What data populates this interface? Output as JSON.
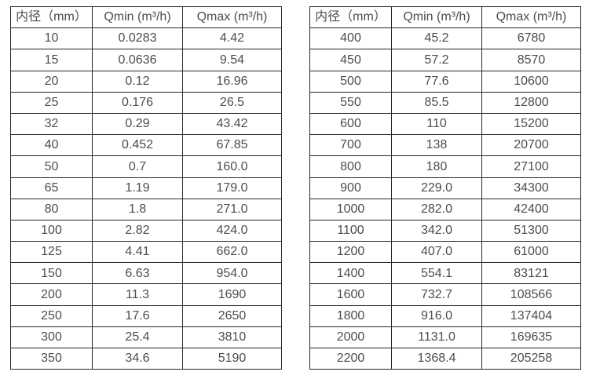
{
  "page": {
    "background_color": "#ffffff",
    "text_color": "#4d4d4d",
    "border_color": "#272727"
  },
  "tables": [
    {
      "headers": [
        "内径（mm）",
        "Qmin (m³/h)",
        "Qmax (m³/h)"
      ],
      "rows": [
        [
          "10",
          "0.0283",
          "4.42"
        ],
        [
          "15",
          "0.0636",
          "9.54"
        ],
        [
          "20",
          "0.12",
          "16.96"
        ],
        [
          "25",
          "0.176",
          "26.5"
        ],
        [
          "32",
          "0.29",
          "43.42"
        ],
        [
          "40",
          "0.452",
          "67.85"
        ],
        [
          "50",
          "0.7",
          "160.0"
        ],
        [
          "65",
          "1.19",
          "179.0"
        ],
        [
          "80",
          "1.8",
          "271.0"
        ],
        [
          "100",
          "2.82",
          "424.0"
        ],
        [
          "125",
          "4.41",
          "662.0"
        ],
        [
          "150",
          "6.63",
          "954.0"
        ],
        [
          "200",
          "11.3",
          "1690"
        ],
        [
          "250",
          "17.6",
          "2650"
        ],
        [
          "300",
          "25.4",
          "3810"
        ],
        [
          "350",
          "34.6",
          "5190"
        ]
      ]
    },
    {
      "headers": [
        "内径（mm）",
        "Qmin (m³/h)",
        "Qmax (m³/h)"
      ],
      "rows": [
        [
          "400",
          "45.2",
          "6780"
        ],
        [
          "450",
          "57.2",
          "8570"
        ],
        [
          "500",
          "77.6",
          "10600"
        ],
        [
          "550",
          "85.5",
          "12800"
        ],
        [
          "600",
          "110",
          "15200"
        ],
        [
          "700",
          "138",
          "20700"
        ],
        [
          "800",
          "180",
          "27100"
        ],
        [
          "900",
          "229.0",
          "34300"
        ],
        [
          "1000",
          "282.0",
          "42400"
        ],
        [
          "1100",
          "342.0",
          "51300"
        ],
        [
          "1200",
          "407.0",
          "61000"
        ],
        [
          "1400",
          "554.1",
          "83121"
        ],
        [
          "1600",
          "732.7",
          "108566"
        ],
        [
          "1800",
          "916.0",
          "137404"
        ],
        [
          "2000",
          "1131.0",
          "169635"
        ],
        [
          "2200",
          "1368.4",
          "205258"
        ]
      ]
    }
  ]
}
